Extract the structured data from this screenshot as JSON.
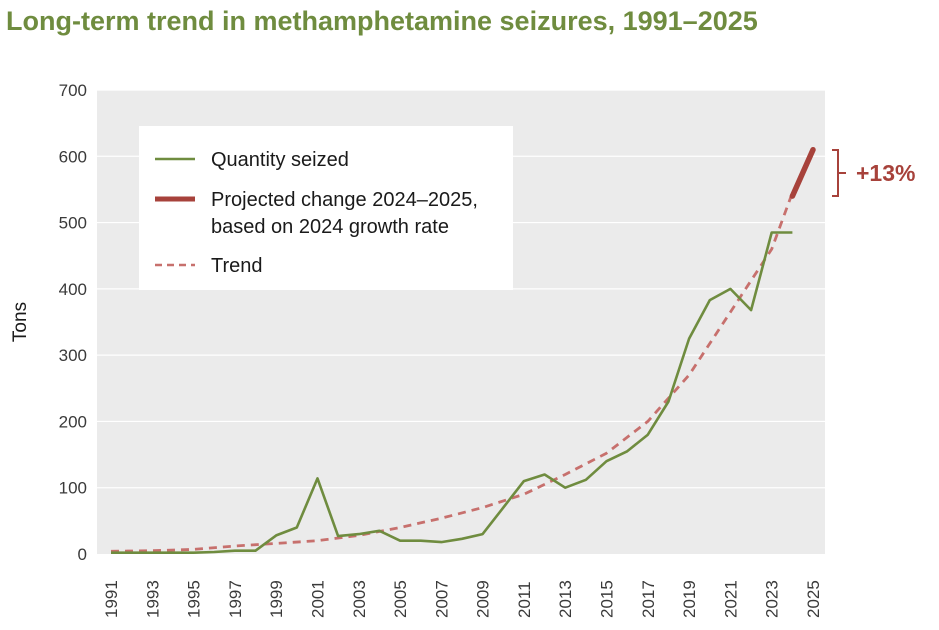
{
  "chart_data": {
    "type": "line",
    "title": "Long-term trend in methamphetamine seizures, 1991–2025",
    "ylabel": "Tons",
    "xlabel": "",
    "ylim": [
      0,
      700
    ],
    "xlim": [
      1991,
      2025
    ],
    "yticks": [
      "0",
      "100",
      "200",
      "300",
      "400",
      "500",
      "600",
      "700"
    ],
    "xticks": [
      "1991",
      "1993",
      "1995",
      "1997",
      "1999",
      "2001",
      "2003",
      "2005",
      "2007",
      "2009",
      "2011",
      "2013",
      "2015",
      "2017",
      "2019",
      "2021",
      "2023",
      "2025"
    ],
    "grid": "horizontal",
    "legend_position": "top-left",
    "series": [
      {
        "name": "Quantity seized",
        "color": "#6f8c3f",
        "style": "solid",
        "x": [
          1991,
          1992,
          1993,
          1994,
          1995,
          1996,
          1997,
          1998,
          1999,
          2000,
          2001,
          2002,
          2003,
          2004,
          2005,
          2006,
          2007,
          2008,
          2009,
          2010,
          2011,
          2012,
          2013,
          2014,
          2015,
          2016,
          2017,
          2018,
          2019,
          2020,
          2021,
          2022,
          2023,
          2024
        ],
        "y": [
          2,
          2,
          2,
          2,
          2,
          3,
          5,
          5,
          28,
          40,
          114,
          27,
          30,
          35,
          20,
          20,
          18,
          23,
          30,
          70,
          110,
          120,
          100,
          112,
          140,
          155,
          180,
          230,
          325,
          383,
          400,
          368,
          485,
          485
        ]
      },
      {
        "name": "Projected change 2024–2025, based on 2024 growth rate",
        "color": "#a7423b",
        "style": "thick",
        "x": [
          2024,
          2025
        ],
        "y": [
          540,
          610
        ]
      },
      {
        "name": "Trend",
        "color": "#c7706d",
        "style": "dashed",
        "x": [
          1991,
          1993,
          1995,
          1997,
          1999,
          2001,
          2003,
          2005,
          2007,
          2009,
          2011,
          2013,
          2015,
          2017,
          2019,
          2021,
          2023,
          2024
        ],
        "y": [
          4,
          5,
          7,
          12,
          16,
          20,
          28,
          40,
          54,
          70,
          90,
          120,
          152,
          200,
          270,
          365,
          460,
          545
        ]
      }
    ],
    "legend": {
      "entries": [
        "Quantity seized",
        "Projected change 2024–2025,",
        "based on 2024 growth rate",
        "Trend"
      ]
    },
    "annotation": {
      "text": "+13%",
      "color": "#a7423b"
    }
  }
}
